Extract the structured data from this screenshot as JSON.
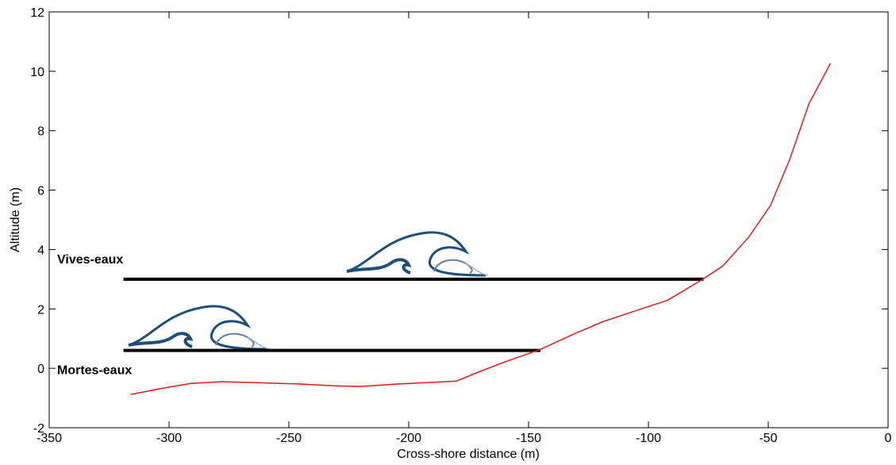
{
  "chart_data": {
    "type": "line",
    "x_label": "Cross-shore distance (m)",
    "y_label": "Altitude (m)",
    "xlim": [
      -350,
      0
    ],
    "ylim": [
      -2,
      12
    ],
    "xticks": [
      -350,
      -300,
      -250,
      -200,
      -150,
      -100,
      -50,
      0
    ],
    "yticks": [
      -2,
      0,
      2,
      4,
      6,
      8,
      10,
      12
    ],
    "profile": {
      "color": "#e41a1c",
      "x": [
        -316,
        -304,
        -291,
        -278,
        -265,
        -245,
        -231,
        -220,
        -205,
        -192,
        -180,
        -172,
        -159,
        -145,
        -132,
        -119,
        -106,
        -92,
        -77.5,
        -69,
        -58,
        -49,
        -41,
        -33,
        -24
      ],
      "y": [
        -0.88,
        -0.69,
        -0.51,
        -0.45,
        -0.48,
        -0.53,
        -0.59,
        -0.61,
        -0.53,
        -0.48,
        -0.43,
        -0.16,
        0.24,
        0.64,
        1.12,
        1.57,
        1.92,
        2.29,
        2.99,
        3.44,
        4.43,
        5.49,
        7.04,
        8.91,
        10.27
      ]
    },
    "levels": [
      {
        "label": "Vives-eaux",
        "y": 3,
        "x": [
          -319,
          -77
        ],
        "color": "#000000"
      },
      {
        "label": "Mortes-eaux",
        "y": 0.6,
        "x": [
          -319,
          -145
        ],
        "color": "#000000"
      }
    ]
  }
}
